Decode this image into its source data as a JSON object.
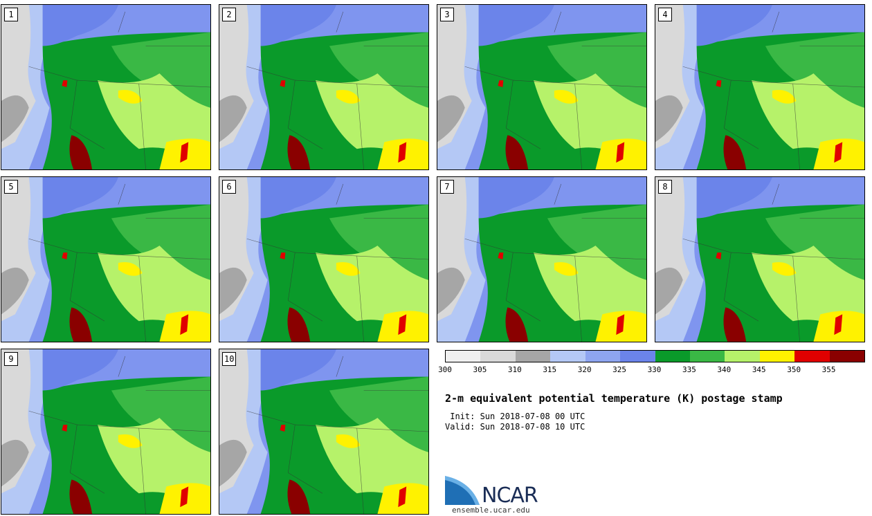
{
  "stamps": [
    {
      "label": "1"
    },
    {
      "label": "2"
    },
    {
      "label": "3"
    },
    {
      "label": "4"
    },
    {
      "label": "5"
    },
    {
      "label": "6"
    },
    {
      "label": "7"
    },
    {
      "label": "8"
    },
    {
      "label": "9"
    },
    {
      "label": "10"
    }
  ],
  "colorbar": {
    "colors": [
      "#f0f0f0",
      "#d9d9d9",
      "#a6a6a6",
      "#b4c8f5",
      "#8ea5f0",
      "#6b84ea",
      "#0a9a2a",
      "#3ab845",
      "#b6f26a",
      "#fff200",
      "#e00000",
      "#8a0000"
    ],
    "ticks": [
      "300",
      "305",
      "310",
      "315",
      "320",
      "325",
      "330",
      "335",
      "340",
      "345",
      "350",
      "355"
    ]
  },
  "title": "2-m equivalent potential temperature (K) postage stamp",
  "init": " Init: Sun 2018-07-08 00 UTC",
  "valid": "Valid: Sun 2018-07-08 10 UTC",
  "logo": {
    "text": "NCAR",
    "url": "ensemble.ucar.edu"
  }
}
